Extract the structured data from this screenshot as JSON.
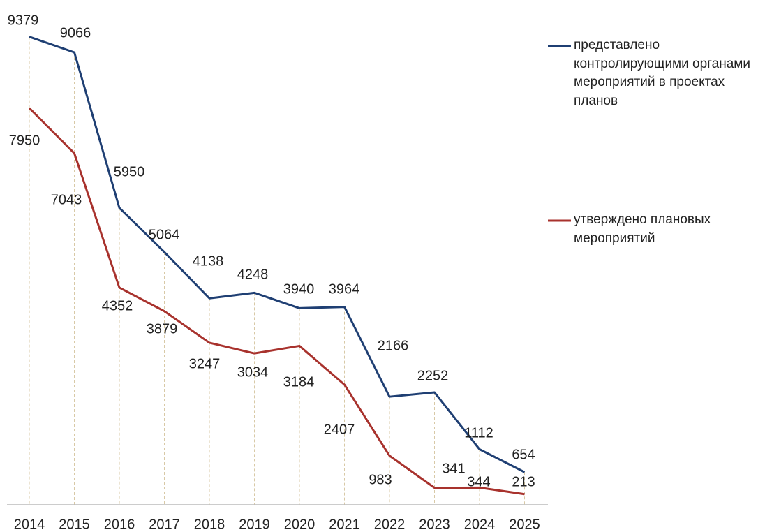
{
  "chart_data": {
    "type": "line",
    "categories": [
      "2014",
      "2015",
      "2016",
      "2017",
      "2018",
      "2019",
      "2020",
      "2021",
      "2022",
      "2023",
      "2024",
      "2025"
    ],
    "series": [
      {
        "name": "представлено контролирующими органами мероприятий в проектах планов",
        "color": "#1f3f73",
        "values": [
          9379,
          9066,
          5950,
          5064,
          4138,
          4248,
          3940,
          3964,
          2166,
          2252,
          1112,
          654
        ]
      },
      {
        "name": "утверждено плановых мероприятий",
        "color": "#a8322d",
        "values": [
          7950,
          7043,
          4352,
          3879,
          3247,
          3034,
          3184,
          2407,
          983,
          341,
          344,
          213
        ]
      }
    ],
    "ylim": [
      0,
      9500
    ]
  }
}
